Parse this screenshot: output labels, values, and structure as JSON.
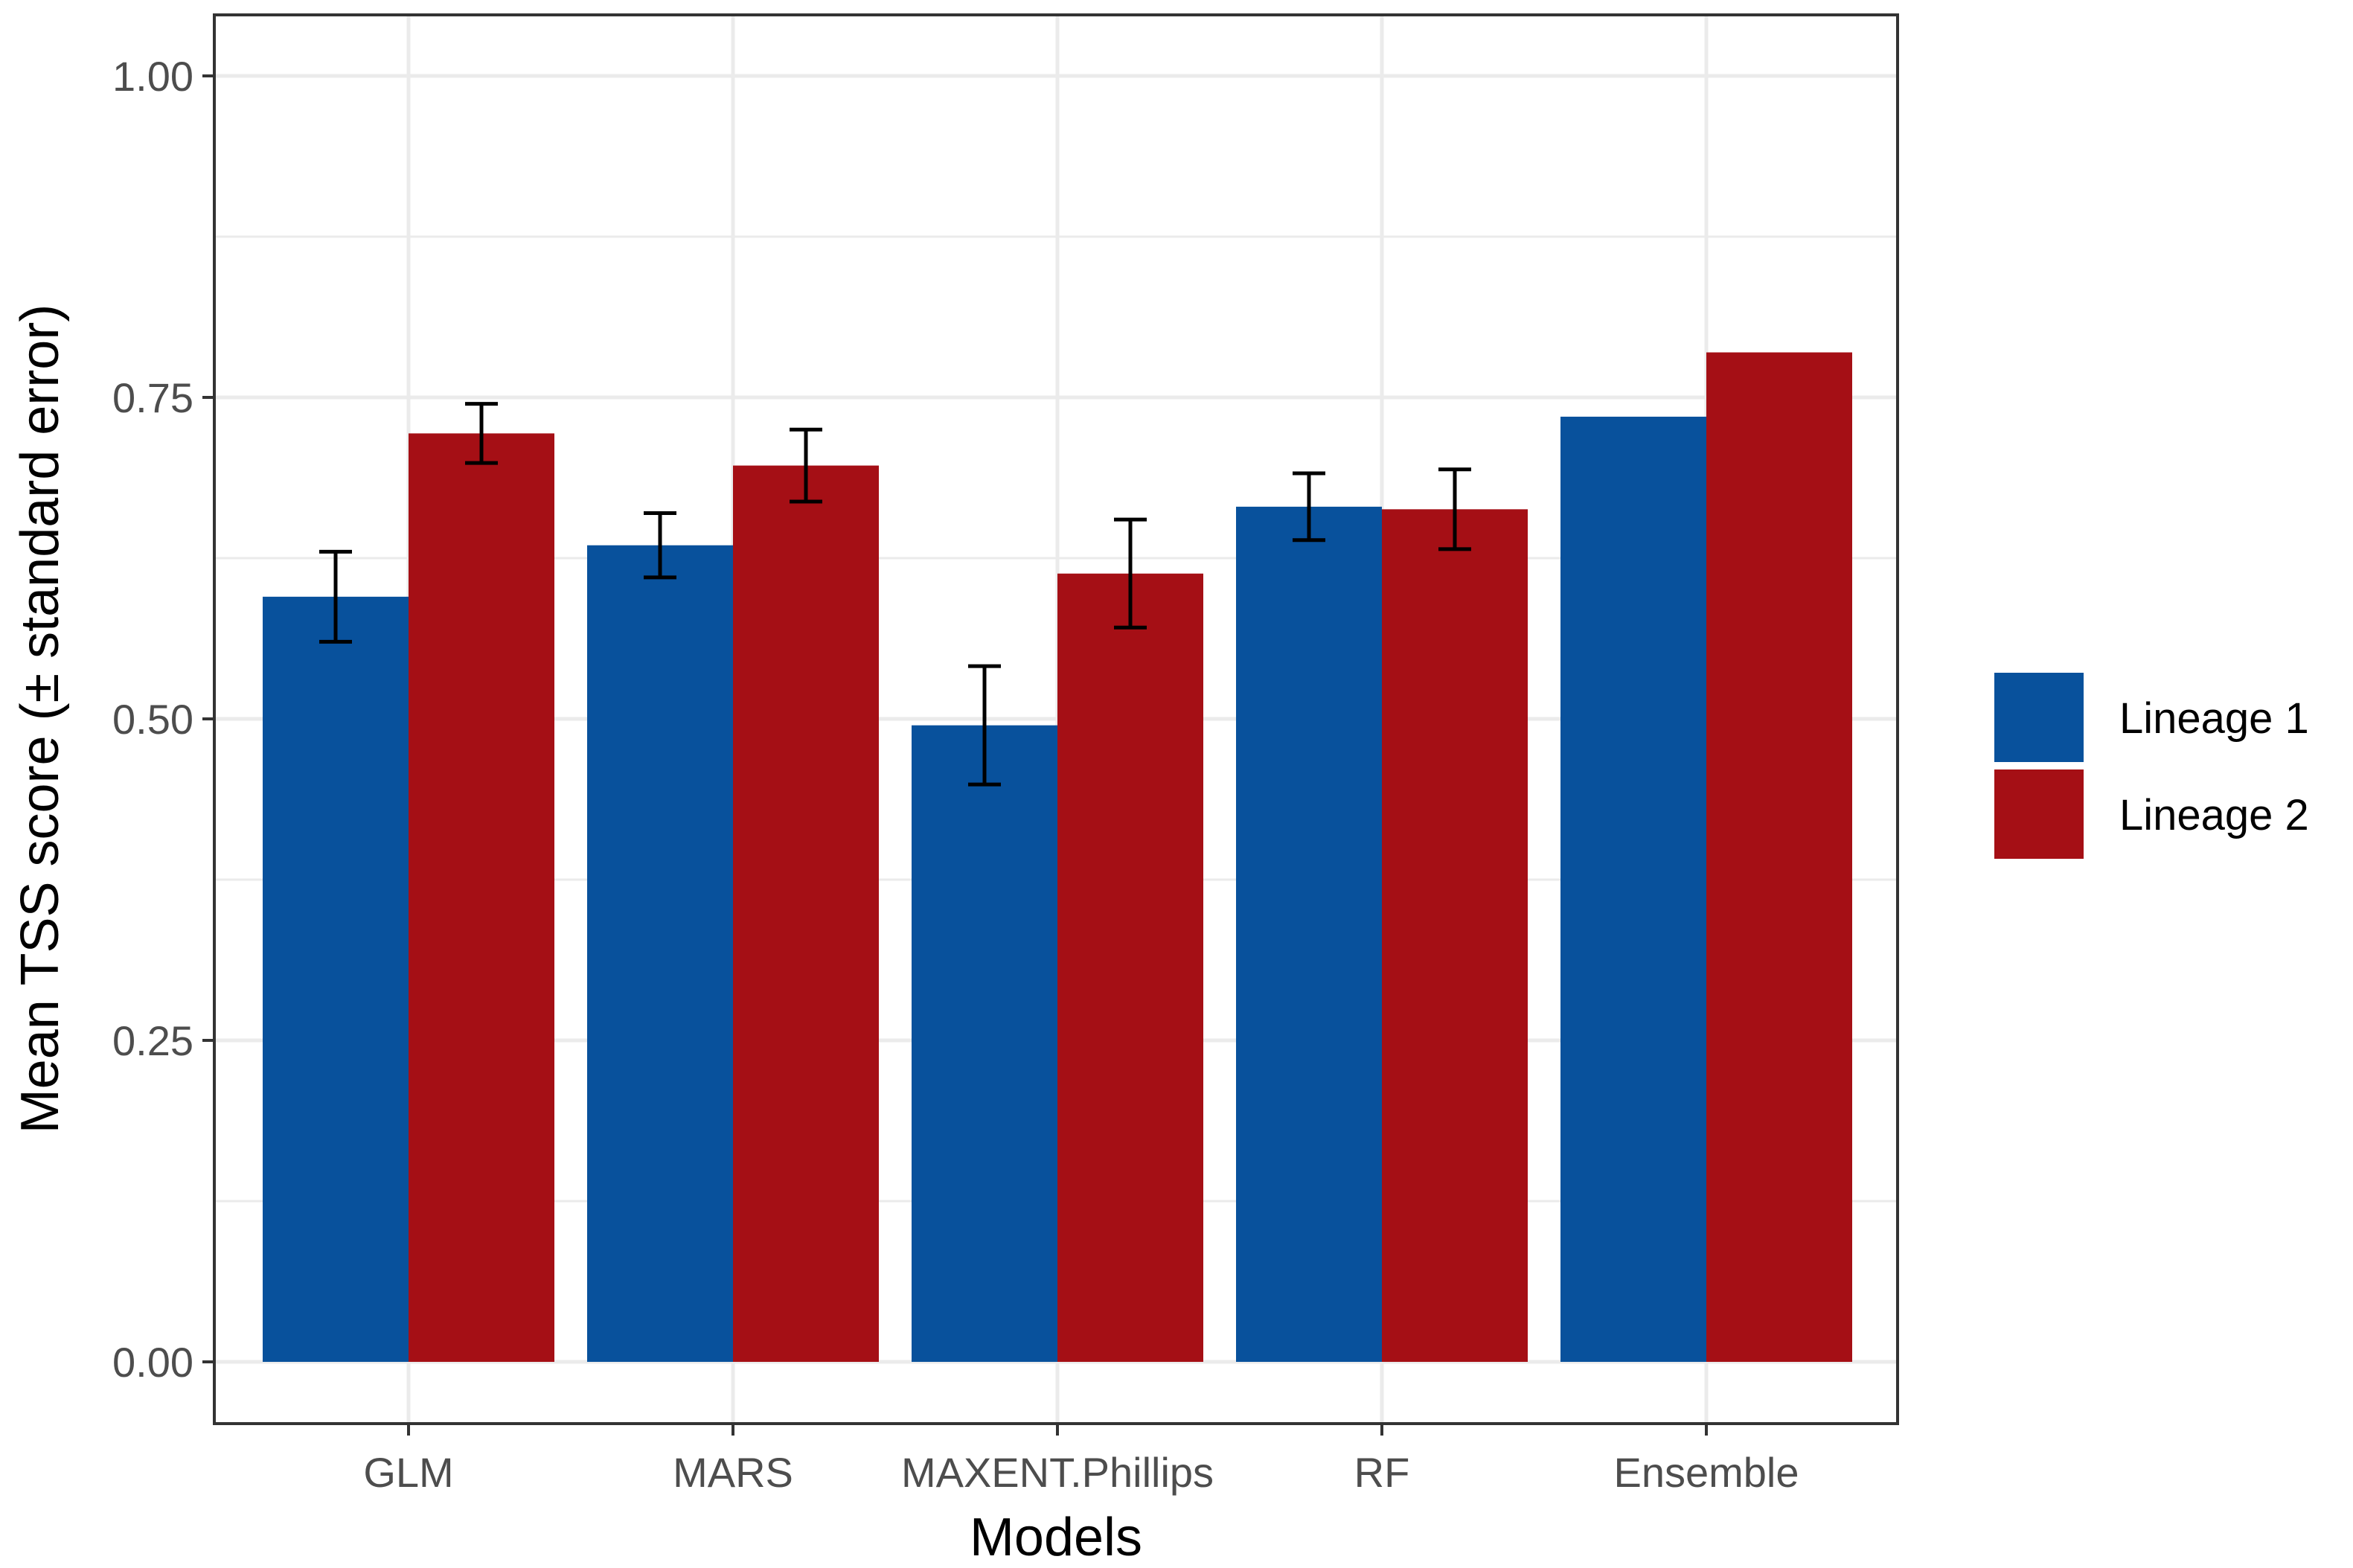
{
  "colors": {
    "lineage1": "#08519c",
    "lineage2": "#a50f15",
    "grid": "#ebebeb",
    "panel_border": "#333333",
    "error_bar": "#000000"
  },
  "chart_data": {
    "type": "bar",
    "title": "",
    "xlabel": "Models",
    "ylabel": "Mean TSS score (± standard error)",
    "ylim": [
      0,
      1.0
    ],
    "yticks": [
      0.0,
      0.25,
      0.5,
      0.75,
      1.0
    ],
    "ytick_labels": [
      "0.00",
      "0.25",
      "0.50",
      "0.75",
      "1.00"
    ],
    "categories": [
      "GLM",
      "MARS",
      "MAXENT.Phillips",
      "RF",
      "Ensemble"
    ],
    "series": [
      {
        "name": "Lineage 1",
        "color": "#08519c",
        "values": [
          0.595,
          0.635,
          0.495,
          0.665,
          0.735
        ],
        "errors": [
          0.035,
          0.025,
          0.046,
          0.026,
          null
        ]
      },
      {
        "name": "Lineage 2",
        "color": "#a50f15",
        "values": [
          0.722,
          0.697,
          0.613,
          0.663,
          0.785
        ],
        "errors": [
          0.023,
          0.028,
          0.042,
          0.031,
          null
        ]
      }
    ],
    "grid": true,
    "legend_position": "right"
  }
}
